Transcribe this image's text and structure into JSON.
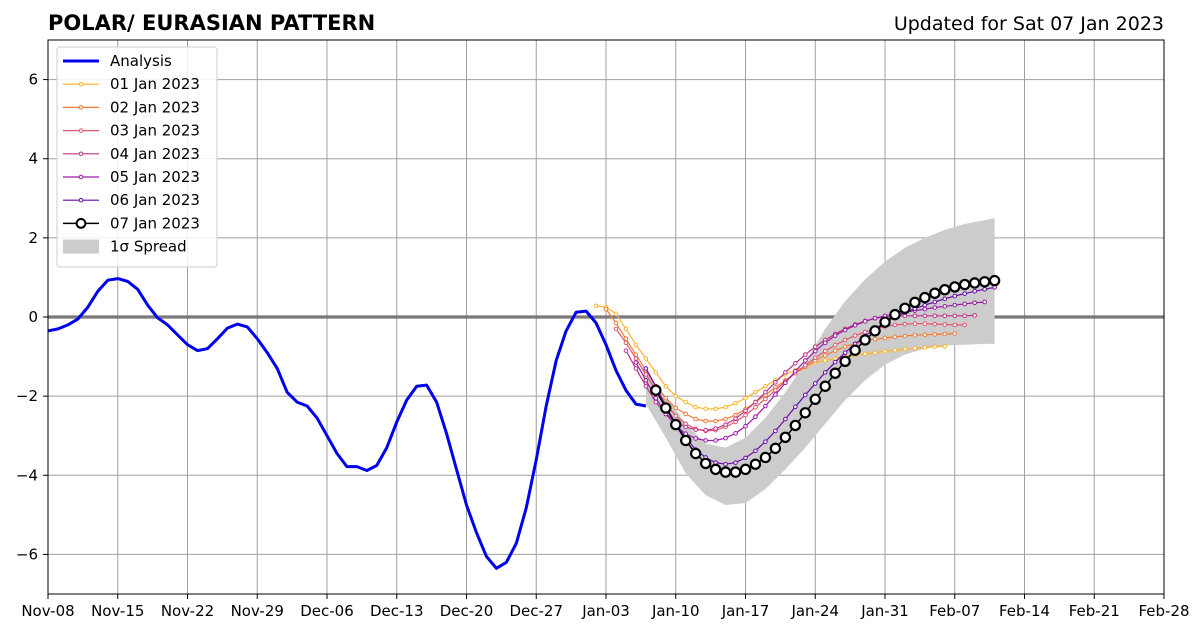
{
  "chart_data": {
    "type": "line",
    "title": "POLAR/ EURASIAN  PATTERN",
    "subtitle": "Updated for Sat 07 Jan 2023",
    "xlabel": "",
    "ylabel": "",
    "xlim": [
      "2022-11-08",
      "2023-02-28"
    ],
    "ylim": [
      -7,
      7
    ],
    "x_ticks": [
      {
        "date": "2022-11-08",
        "label": "Nov-08"
      },
      {
        "date": "2022-11-15",
        "label": "Nov-15"
      },
      {
        "date": "2022-11-22",
        "label": "Nov-22"
      },
      {
        "date": "2022-11-29",
        "label": "Nov-29"
      },
      {
        "date": "2022-12-06",
        "label": "Dec-06"
      },
      {
        "date": "2022-12-13",
        "label": "Dec-13"
      },
      {
        "date": "2022-12-20",
        "label": "Dec-20"
      },
      {
        "date": "2022-12-27",
        "label": "Dec-27"
      },
      {
        "date": "2023-01-03",
        "label": "Jan-03"
      },
      {
        "date": "2023-01-10",
        "label": "Jan-10"
      },
      {
        "date": "2023-01-17",
        "label": "Jan-17"
      },
      {
        "date": "2023-01-24",
        "label": "Jan-24"
      },
      {
        "date": "2023-01-31",
        "label": "Jan-31"
      },
      {
        "date": "2023-02-07",
        "label": "Feb-07"
      },
      {
        "date": "2023-02-14",
        "label": "Feb-14"
      },
      {
        "date": "2023-02-21",
        "label": "Feb-21"
      },
      {
        "date": "2023-02-28",
        "label": "Feb-28"
      }
    ],
    "y_ticks": [
      {
        "value": 6,
        "label": "6"
      },
      {
        "value": 4,
        "label": "4"
      },
      {
        "value": 2,
        "label": "2"
      },
      {
        "value": 0,
        "label": "0"
      },
      {
        "value": -2,
        "label": "−2"
      },
      {
        "value": -4,
        "label": "−4"
      },
      {
        "value": -6,
        "label": "−6"
      }
    ],
    "grid": true,
    "legend_position": "top-left",
    "analysis": {
      "name": "Analysis",
      "color": "#0000ee",
      "x": [
        "2022-11-08",
        "2022-11-09",
        "2022-11-10",
        "2022-11-11",
        "2022-11-12",
        "2022-11-13",
        "2022-11-14",
        "2022-11-15",
        "2022-11-16",
        "2022-11-17",
        "2022-11-18",
        "2022-11-19",
        "2022-11-20",
        "2022-11-21",
        "2022-11-22",
        "2022-11-23",
        "2022-11-24",
        "2022-11-25",
        "2022-11-26",
        "2022-11-27",
        "2022-11-28",
        "2022-11-29",
        "2022-11-30",
        "2022-12-01",
        "2022-12-02",
        "2022-12-03",
        "2022-12-04",
        "2022-12-05",
        "2022-12-06",
        "2022-12-07",
        "2022-12-08",
        "2022-12-09",
        "2022-12-10",
        "2022-12-11",
        "2022-12-12",
        "2022-12-13",
        "2022-12-14",
        "2022-12-15",
        "2022-12-16",
        "2022-12-17",
        "2022-12-18",
        "2022-12-19",
        "2022-12-20",
        "2022-12-21",
        "2022-12-22",
        "2022-12-23",
        "2022-12-24",
        "2022-12-25",
        "2022-12-26",
        "2022-12-27",
        "2022-12-28",
        "2022-12-29",
        "2022-12-30",
        "2022-12-31",
        "2023-01-01",
        "2023-01-02",
        "2023-01-03",
        "2023-01-04",
        "2023-01-05",
        "2023-01-06",
        "2023-01-07"
      ],
      "y": [
        -0.35,
        -0.3,
        -0.2,
        -0.05,
        0.25,
        0.65,
        0.93,
        0.97,
        0.9,
        0.7,
        0.3,
        -0.02,
        -0.2,
        -0.45,
        -0.7,
        -0.85,
        -0.8,
        -0.55,
        -0.28,
        -0.18,
        -0.25,
        -0.55,
        -0.9,
        -1.3,
        -1.9,
        -2.15,
        -2.25,
        -2.55,
        -3.0,
        -3.45,
        -3.78,
        -3.78,
        -3.88,
        -3.75,
        -3.3,
        -2.65,
        -2.1,
        -1.75,
        -1.72,
        -2.15,
        -2.95,
        -3.85,
        -4.75,
        -5.45,
        -6.05,
        -6.35,
        -6.2,
        -5.72,
        -4.82,
        -3.6,
        -2.25,
        -1.1,
        -0.35,
        0.12,
        0.15,
        -0.15,
        -0.7,
        -1.35,
        -1.85,
        -2.2,
        -2.25
      ]
    },
    "spread": {
      "name": "1σ Spread",
      "color": "#cccccc",
      "x": [
        "2023-01-07",
        "2023-01-09",
        "2023-01-11",
        "2023-01-13",
        "2023-01-15",
        "2023-01-17",
        "2023-01-19",
        "2023-01-21",
        "2023-01-23",
        "2023-01-25",
        "2023-01-27",
        "2023-01-29",
        "2023-01-31",
        "2023-02-02",
        "2023-02-04",
        "2023-02-06",
        "2023-02-08",
        "2023-02-10",
        "2023-02-11"
      ],
      "upper": [
        -1.4,
        -2.0,
        -2.7,
        -3.2,
        -3.3,
        -3.05,
        -2.55,
        -1.9,
        -1.15,
        -0.3,
        0.4,
        0.95,
        1.4,
        1.75,
        2.0,
        2.2,
        2.35,
        2.45,
        2.5
      ],
      "lower": [
        -2.2,
        -3.05,
        -3.95,
        -4.5,
        -4.75,
        -4.7,
        -4.35,
        -3.85,
        -3.3,
        -2.7,
        -2.1,
        -1.6,
        -1.2,
        -0.95,
        -0.8,
        -0.72,
        -0.7,
        -0.68,
        -0.68
      ]
    },
    "forecasts": [
      {
        "name": "01 Jan 2023",
        "color": "#fcb42a",
        "x": [
          "2023-01-02",
          "2023-01-03",
          "2023-01-04",
          "2023-01-05",
          "2023-01-06",
          "2023-01-07",
          "2023-01-08",
          "2023-01-09",
          "2023-01-10",
          "2023-01-11",
          "2023-01-12",
          "2023-01-13",
          "2023-01-14",
          "2023-01-15",
          "2023-01-16",
          "2023-01-17",
          "2023-01-18",
          "2023-01-19",
          "2023-01-20",
          "2023-01-21",
          "2023-01-22",
          "2023-01-23",
          "2023-01-24",
          "2023-01-25",
          "2023-01-26",
          "2023-01-27",
          "2023-01-28",
          "2023-01-29",
          "2023-01-30",
          "2023-01-31",
          "2023-02-01",
          "2023-02-02",
          "2023-02-03",
          "2023-02-04",
          "2023-02-05",
          "2023-02-06"
        ],
        "y": [
          0.28,
          0.25,
          0.08,
          -0.3,
          -0.7,
          -1.05,
          -1.4,
          -1.75,
          -2.0,
          -2.15,
          -2.28,
          -2.32,
          -2.32,
          -2.28,
          -2.18,
          -2.05,
          -1.9,
          -1.75,
          -1.6,
          -1.45,
          -1.35,
          -1.25,
          -1.15,
          -1.1,
          -1.05,
          -1.0,
          -0.96,
          -0.93,
          -0.9,
          -0.87,
          -0.84,
          -0.81,
          -0.79,
          -0.77,
          -0.75,
          -0.74
        ]
      },
      {
        "name": "02 Jan 2023",
        "color": "#f07a35",
        "x": [
          "2023-01-03",
          "2023-01-04",
          "2023-01-05",
          "2023-01-06",
          "2023-01-07",
          "2023-01-08",
          "2023-01-09",
          "2023-01-10",
          "2023-01-11",
          "2023-01-12",
          "2023-01-13",
          "2023-01-14",
          "2023-01-15",
          "2023-01-16",
          "2023-01-17",
          "2023-01-18",
          "2023-01-19",
          "2023-01-20",
          "2023-01-21",
          "2023-01-22",
          "2023-01-23",
          "2023-01-24",
          "2023-01-25",
          "2023-01-26",
          "2023-01-27",
          "2023-01-28",
          "2023-01-29",
          "2023-01-30",
          "2023-01-31",
          "2023-02-01",
          "2023-02-02",
          "2023-02-03",
          "2023-02-04",
          "2023-02-05",
          "2023-02-06",
          "2023-02-07"
        ],
        "y": [
          0.2,
          -0.15,
          -0.55,
          -0.95,
          -1.35,
          -1.75,
          -2.05,
          -2.3,
          -2.45,
          -2.58,
          -2.63,
          -2.63,
          -2.58,
          -2.48,
          -2.33,
          -2.15,
          -1.97,
          -1.78,
          -1.6,
          -1.42,
          -1.26,
          -1.1,
          -0.97,
          -0.85,
          -0.75,
          -0.67,
          -0.6,
          -0.56,
          -0.53,
          -0.5,
          -0.48,
          -0.46,
          -0.45,
          -0.44,
          -0.43,
          -0.42
        ]
      },
      {
        "name": "03 Jan 2023",
        "color": "#e2556c",
        "x": [
          "2023-01-04",
          "2023-01-05",
          "2023-01-06",
          "2023-01-07",
          "2023-01-08",
          "2023-01-09",
          "2023-01-10",
          "2023-01-11",
          "2023-01-12",
          "2023-01-13",
          "2023-01-14",
          "2023-01-15",
          "2023-01-16",
          "2023-01-17",
          "2023-01-18",
          "2023-01-19",
          "2023-01-20",
          "2023-01-21",
          "2023-01-22",
          "2023-01-23",
          "2023-01-24",
          "2023-01-25",
          "2023-01-26",
          "2023-01-27",
          "2023-01-28",
          "2023-01-29",
          "2023-01-30",
          "2023-01-31",
          "2023-02-01",
          "2023-02-02",
          "2023-02-03",
          "2023-02-04",
          "2023-02-05",
          "2023-02-06",
          "2023-02-07",
          "2023-02-08"
        ],
        "y": [
          -0.3,
          -0.65,
          -1.05,
          -1.45,
          -1.85,
          -2.2,
          -2.5,
          -2.7,
          -2.83,
          -2.88,
          -2.86,
          -2.78,
          -2.65,
          -2.48,
          -2.28,
          -2.07,
          -1.85,
          -1.63,
          -1.42,
          -1.22,
          -1.03,
          -0.86,
          -0.71,
          -0.58,
          -0.47,
          -0.38,
          -0.3,
          -0.24,
          -0.2,
          -0.18,
          -0.17,
          -0.17,
          -0.18,
          -0.19,
          -0.2,
          -0.2
        ]
      },
      {
        "name": "04 Jan 2023",
        "color": "#c0308a",
        "x": [
          "2023-01-05",
          "2023-01-06",
          "2023-01-07",
          "2023-01-08",
          "2023-01-09",
          "2023-01-10",
          "2023-01-11",
          "2023-01-12",
          "2023-01-13",
          "2023-01-14",
          "2023-01-15",
          "2023-01-16",
          "2023-01-17",
          "2023-01-18",
          "2023-01-19",
          "2023-01-20",
          "2023-01-21",
          "2023-01-22",
          "2023-01-23",
          "2023-01-24",
          "2023-01-25",
          "2023-01-26",
          "2023-01-27",
          "2023-01-28",
          "2023-01-29",
          "2023-01-30",
          "2023-01-31",
          "2023-02-01",
          "2023-02-02",
          "2023-02-03",
          "2023-02-04",
          "2023-02-05",
          "2023-02-06",
          "2023-02-07",
          "2023-02-08",
          "2023-02-09"
        ],
        "y": [
          -0.85,
          -1.3,
          -1.75,
          -2.15,
          -2.45,
          -2.65,
          -2.78,
          -2.85,
          -2.86,
          -2.82,
          -2.72,
          -2.57,
          -2.37,
          -2.15,
          -1.9,
          -1.65,
          -1.4,
          -1.17,
          -0.95,
          -0.75,
          -0.58,
          -0.43,
          -0.3,
          -0.19,
          -0.1,
          -0.03,
          0.0,
          0.02,
          0.03,
          0.03,
          0.03,
          0.03,
          0.03,
          0.03,
          0.03,
          0.04
        ]
      },
      {
        "name": "05 Jan 2023",
        "color": "#9a1aa8",
        "x": [
          "2023-01-06",
          "2023-01-07",
          "2023-01-08",
          "2023-01-09",
          "2023-01-10",
          "2023-01-11",
          "2023-01-12",
          "2023-01-13",
          "2023-01-14",
          "2023-01-15",
          "2023-01-16",
          "2023-01-17",
          "2023-01-18",
          "2023-01-19",
          "2023-01-20",
          "2023-01-21",
          "2023-01-22",
          "2023-01-23",
          "2023-01-24",
          "2023-01-25",
          "2023-01-26",
          "2023-01-27",
          "2023-01-28",
          "2023-01-29",
          "2023-01-30",
          "2023-01-31",
          "2023-02-01",
          "2023-02-02",
          "2023-02-03",
          "2023-02-04",
          "2023-02-05",
          "2023-02-06",
          "2023-02-07",
          "2023-02-08",
          "2023-02-09",
          "2023-02-10"
        ],
        "y": [
          -1.15,
          -1.6,
          -2.05,
          -2.45,
          -2.75,
          -2.95,
          -3.07,
          -3.12,
          -3.12,
          -3.06,
          -2.94,
          -2.76,
          -2.52,
          -2.25,
          -1.96,
          -1.66,
          -1.37,
          -1.1,
          -0.86,
          -0.65,
          -0.47,
          -0.33,
          -0.21,
          -0.11,
          -0.03,
          0.03,
          0.08,
          0.12,
          0.16,
          0.2,
          0.24,
          0.27,
          0.3,
          0.33,
          0.36,
          0.38
        ]
      },
      {
        "name": "06 Jan 2023",
        "color": "#6a0aa8",
        "x": [
          "2023-01-07",
          "2023-01-08",
          "2023-01-09",
          "2023-01-10",
          "2023-01-11",
          "2023-01-12",
          "2023-01-13",
          "2023-01-14",
          "2023-01-15",
          "2023-01-16",
          "2023-01-17",
          "2023-01-18",
          "2023-01-19",
          "2023-01-20",
          "2023-01-21",
          "2023-01-22",
          "2023-01-23",
          "2023-01-24",
          "2023-01-25",
          "2023-01-26",
          "2023-01-27",
          "2023-01-28",
          "2023-01-29",
          "2023-01-30",
          "2023-01-31",
          "2023-02-01",
          "2023-02-02",
          "2023-02-03",
          "2023-02-04",
          "2023-02-05",
          "2023-02-06",
          "2023-02-07",
          "2023-02-08",
          "2023-02-09",
          "2023-02-10",
          "2023-02-11"
        ],
        "y": [
          -1.3,
          -1.75,
          -2.25,
          -2.7,
          -3.05,
          -3.35,
          -3.55,
          -3.68,
          -3.72,
          -3.68,
          -3.56,
          -3.38,
          -3.15,
          -2.88,
          -2.58,
          -2.27,
          -1.97,
          -1.68,
          -1.4,
          -1.14,
          -0.9,
          -0.68,
          -0.48,
          -0.3,
          -0.14,
          -0.01,
          0.11,
          0.21,
          0.3,
          0.38,
          0.46,
          0.53,
          0.59,
          0.65,
          0.7,
          0.75
        ]
      },
      {
        "name": "07 Jan 2023",
        "color": "#000000",
        "marker": "open-circle",
        "x": [
          "2023-01-08",
          "2023-01-09",
          "2023-01-10",
          "2023-01-11",
          "2023-01-12",
          "2023-01-13",
          "2023-01-14",
          "2023-01-15",
          "2023-01-16",
          "2023-01-17",
          "2023-01-18",
          "2023-01-19",
          "2023-01-20",
          "2023-01-21",
          "2023-01-22",
          "2023-01-23",
          "2023-01-24",
          "2023-01-25",
          "2023-01-26",
          "2023-01-27",
          "2023-01-28",
          "2023-01-29",
          "2023-01-30",
          "2023-01-31",
          "2023-02-01",
          "2023-02-02",
          "2023-02-03",
          "2023-02-04",
          "2023-02-05",
          "2023-02-06",
          "2023-02-07",
          "2023-02-08",
          "2023-02-09",
          "2023-02-10",
          "2023-02-11"
        ],
        "y": [
          -1.85,
          -2.3,
          -2.72,
          -3.12,
          -3.45,
          -3.7,
          -3.85,
          -3.92,
          -3.92,
          -3.85,
          -3.72,
          -3.55,
          -3.32,
          -3.04,
          -2.74,
          -2.42,
          -2.08,
          -1.75,
          -1.42,
          -1.12,
          -0.84,
          -0.58,
          -0.35,
          -0.13,
          0.06,
          0.22,
          0.37,
          0.49,
          0.6,
          0.69,
          0.76,
          0.82,
          0.86,
          0.89,
          0.92
        ]
      }
    ]
  }
}
